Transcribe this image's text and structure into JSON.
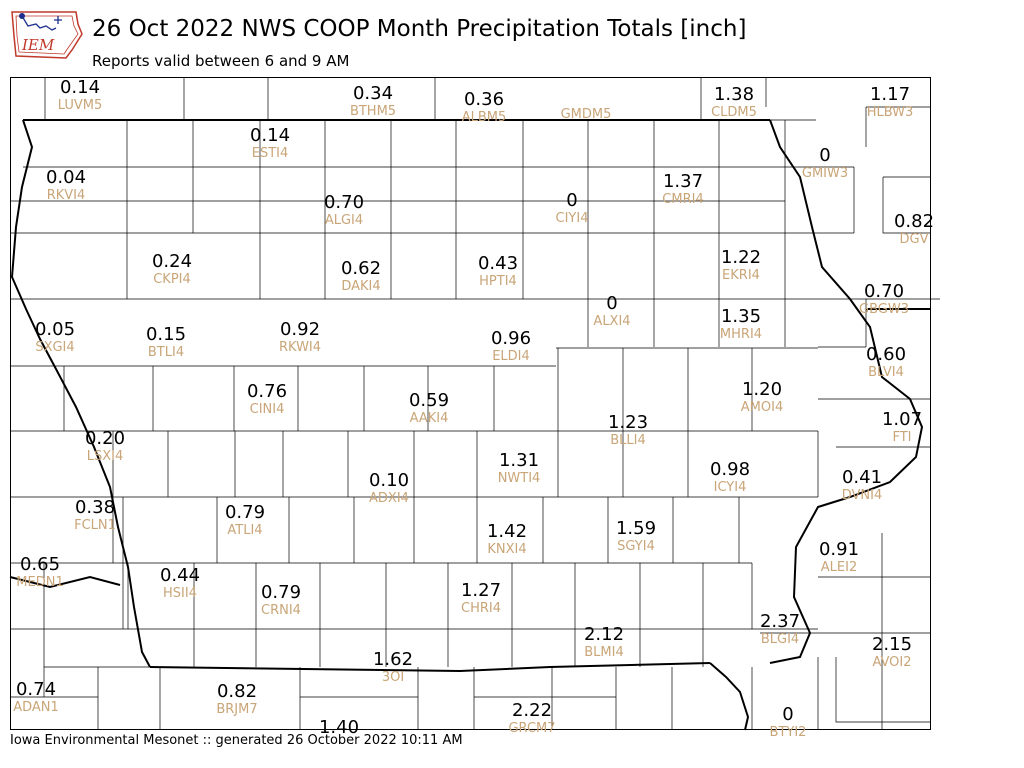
{
  "header": {
    "logo_text": "IEM",
    "title": "26 Oct 2022 NWS COOP Month Precipitation Totals [inch]",
    "subtitle": "Reports valid between 6 and 9 AM"
  },
  "footer": {
    "text": "Iowa Environmental Mesonet :: generated 26 October 2022 10:11 AM"
  },
  "colors": {
    "value_text": "#000000",
    "station_text": "#c9a578",
    "county_lines": "#000000",
    "state_border": "#000000",
    "background": "#ffffff"
  },
  "stations": [
    {
      "id": "LUVM5",
      "value": "0.14"
    },
    {
      "id": "BTHM5",
      "value": "0.34"
    },
    {
      "id": "ALBM5",
      "value": "0.36"
    },
    {
      "id": "GMDM5",
      "value": ""
    },
    {
      "id": "CLDM5",
      "value": "1.38"
    },
    {
      "id": "HLBW3",
      "value": "1.17"
    },
    {
      "id": "ESTI4",
      "value": "0.14"
    },
    {
      "id": "RKVI4",
      "value": "0.04"
    },
    {
      "id": "ALGI4",
      "value": "0.70"
    },
    {
      "id": "CIYI4",
      "value": "0"
    },
    {
      "id": "CMRI4",
      "value": "1.37"
    },
    {
      "id": "GMIW3",
      "value": "0"
    },
    {
      "id": "DGV",
      "value": "0.82"
    },
    {
      "id": "CKPI4",
      "value": "0.24"
    },
    {
      "id": "DAKI4",
      "value": "0.62"
    },
    {
      "id": "HPTI4",
      "value": "0.43"
    },
    {
      "id": "EKRI4",
      "value": "1.22"
    },
    {
      "id": "ALXI4",
      "value": "0"
    },
    {
      "id": "GBGW3",
      "value": "0.70"
    },
    {
      "id": "SXGI4",
      "value": "0.05"
    },
    {
      "id": "BTLI4",
      "value": "0.15"
    },
    {
      "id": "RKWI4",
      "value": "0.92"
    },
    {
      "id": "ELDI4",
      "value": "0.96"
    },
    {
      "id": "MHRI4",
      "value": "1.35"
    },
    {
      "id": "BLVI4",
      "value": "0.60"
    },
    {
      "id": "CINI4",
      "value": "0.76"
    },
    {
      "id": "AAKI4",
      "value": "0.59"
    },
    {
      "id": "AMOI4",
      "value": "1.20"
    },
    {
      "id": "BLLI4",
      "value": "1.23"
    },
    {
      "id": "FTI",
      "value": "1.07"
    },
    {
      "id": "LSXI4",
      "value": "0.20"
    },
    {
      "id": "NWTI4",
      "value": "1.31"
    },
    {
      "id": "ICYI4",
      "value": "0.98"
    },
    {
      "id": "DVNI4",
      "value": "0.41"
    },
    {
      "id": "ADXI4",
      "value": "0.10"
    },
    {
      "id": "FCLN1",
      "value": "0.38"
    },
    {
      "id": "ATLI4",
      "value": "0.79"
    },
    {
      "id": "KNXI4",
      "value": "1.42"
    },
    {
      "id": "SGYI4",
      "value": "1.59"
    },
    {
      "id": "ALEI2",
      "value": "0.91"
    },
    {
      "id": "MEDN1",
      "value": "0.65"
    },
    {
      "id": "HSII4",
      "value": "0.44"
    },
    {
      "id": "CRNI4",
      "value": "0.79"
    },
    {
      "id": "CHRI4",
      "value": "1.27"
    },
    {
      "id": "BLGI4",
      "value": "2.37"
    },
    {
      "id": "BLMI4",
      "value": "2.12"
    },
    {
      "id": "3OI",
      "value": "1.62"
    },
    {
      "id": "AVOI2",
      "value": "2.15"
    },
    {
      "id": "ADAN1",
      "value": "0.74"
    },
    {
      "id": "BRJM7",
      "value": "0.82"
    },
    {
      "id": "GRCM7",
      "value": "2.22"
    },
    {
      "id": "",
      "value": "1.40"
    },
    {
      "id": "BTYI2",
      "value": "0"
    }
  ]
}
